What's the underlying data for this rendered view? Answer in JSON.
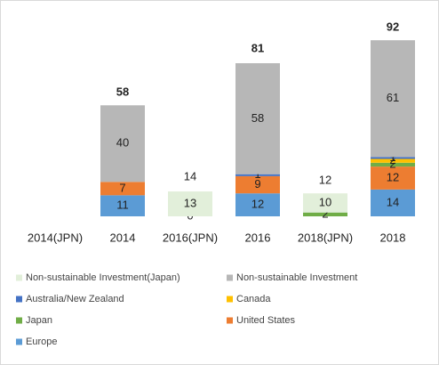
{
  "chart_data": {
    "type": "bar",
    "stacked": true,
    "categories": [
      "2014(JPN)",
      "2014",
      "2016(JPN)",
      "2016",
      "2018(JPN)",
      "2018"
    ],
    "series": [
      {
        "name": "Non-sustainable Investment(Japan)",
        "color": "#e2efda",
        "values": [
          null,
          null,
          13,
          null,
          10,
          null
        ]
      },
      {
        "name": "Non-sustainable Investment",
        "color": "#b7b7b7",
        "values": [
          null,
          40,
          null,
          58,
          null,
          61
        ]
      },
      {
        "name": "Australia/New Zealand",
        "color": "#4472c4",
        "values": [
          null,
          null,
          null,
          1,
          null,
          1
        ]
      },
      {
        "name": "Canada",
        "color": "#ffc000",
        "values": [
          null,
          null,
          null,
          null,
          null,
          2
        ]
      },
      {
        "name": "Japan",
        "color": "#70ad47",
        "values": [
          null,
          null,
          0,
          null,
          2,
          2
        ]
      },
      {
        "name": "United States",
        "color": "#ed7d31",
        "values": [
          null,
          7,
          null,
          9,
          null,
          12
        ]
      },
      {
        "name": "Europe",
        "color": "#5b9bd5",
        "values": [
          null,
          11,
          null,
          12,
          null,
          14
        ]
      }
    ],
    "totals": [
      null,
      58,
      14,
      81,
      12,
      92
    ]
  }
}
